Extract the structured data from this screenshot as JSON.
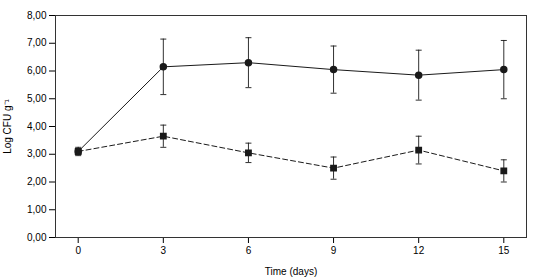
{
  "chart_data": {
    "type": "line",
    "x": [
      0,
      3,
      6,
      9,
      12,
      15
    ],
    "xlabel": "Time (days)",
    "ylabel": "Log CFU g⁻¹",
    "xlim": [
      -0.8,
      15.8
    ],
    "ylim": [
      0.0,
      8.0
    ],
    "xticks": [
      0,
      3,
      6,
      9,
      12,
      15
    ],
    "yticks": [
      {
        "value": 0.0,
        "label": "0,00"
      },
      {
        "value": 1.0,
        "label": "1,00"
      },
      {
        "value": 2.0,
        "label": "2,00"
      },
      {
        "value": 3.0,
        "label": "3,00"
      },
      {
        "value": 4.0,
        "label": "4,00"
      },
      {
        "value": 5.0,
        "label": "5,00"
      },
      {
        "value": 6.0,
        "label": "6,00"
      },
      {
        "value": 7.0,
        "label": "7,00"
      },
      {
        "value": 8.0,
        "label": "8,00"
      }
    ],
    "grid": false,
    "series": [
      {
        "color": "#1a1a1a",
        "marker": "circle",
        "line_style": "solid",
        "values": [
          3.1,
          6.15,
          6.3,
          6.05,
          5.85,
          6.05
        ],
        "yerr": [
          0.05,
          1.0,
          0.9,
          0.85,
          0.9,
          1.05
        ]
      },
      {
        "color": "#1a1a1a",
        "marker": "square",
        "line_style": "dashed",
        "values": [
          3.1,
          3.65,
          3.05,
          2.5,
          3.15,
          2.4
        ],
        "yerr": [
          0.15,
          0.4,
          0.35,
          0.4,
          0.5,
          0.4
        ]
      }
    ]
  }
}
